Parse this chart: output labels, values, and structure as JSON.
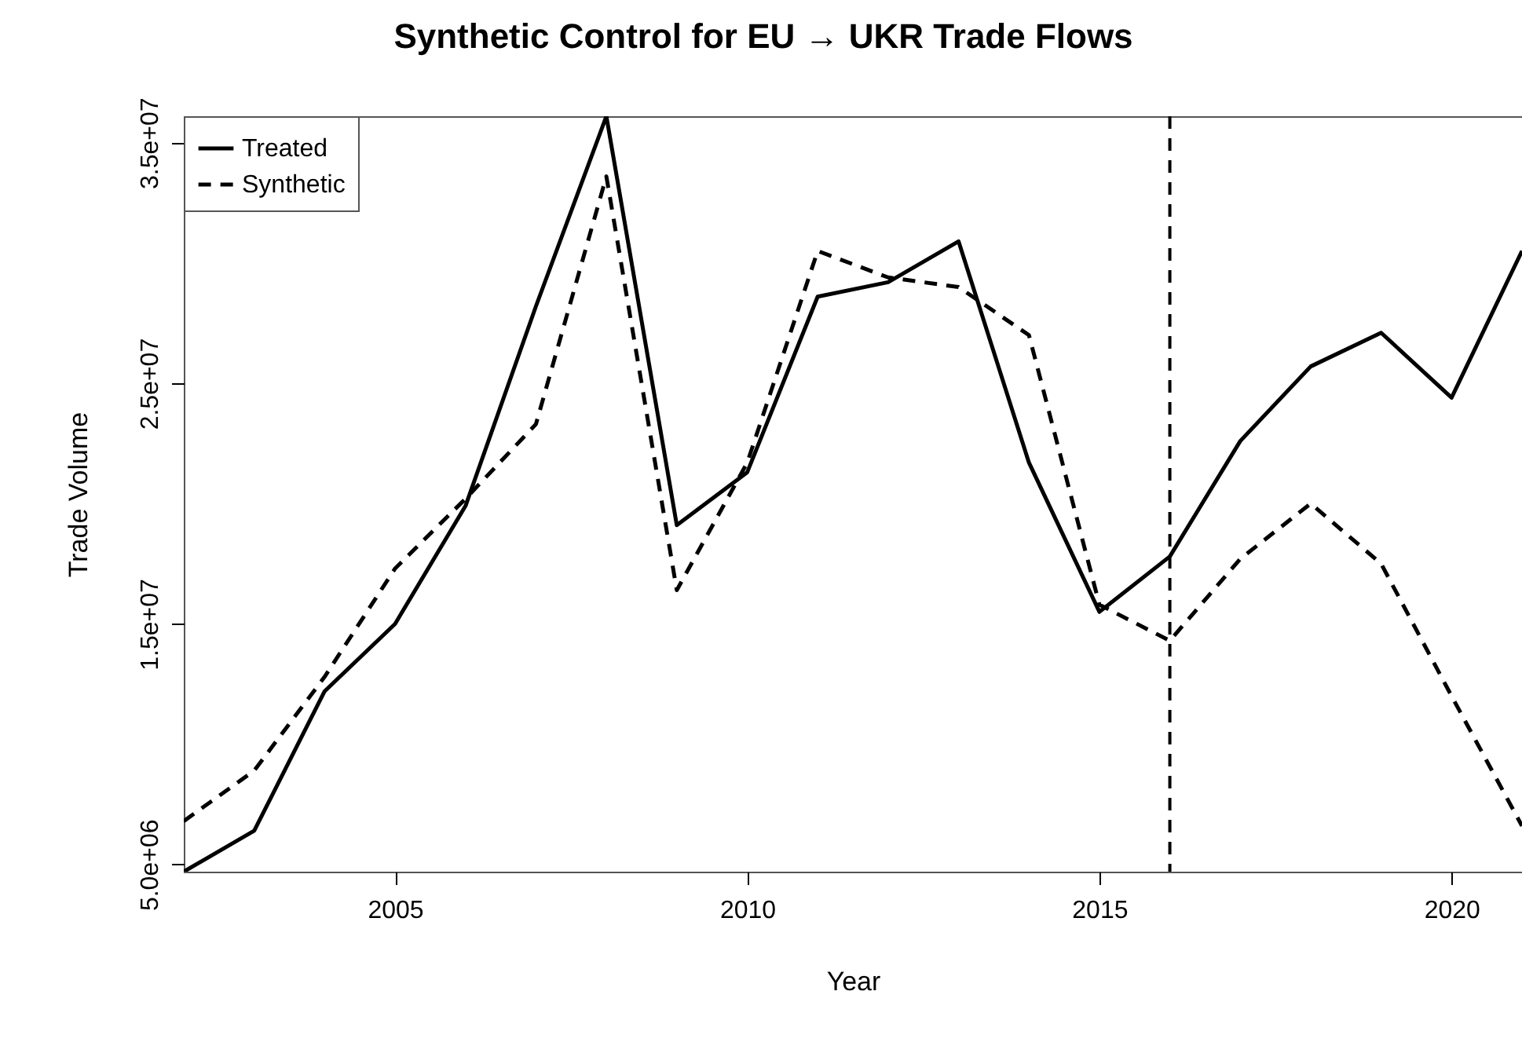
{
  "chart_data": {
    "type": "line",
    "title": "Synthetic Control for EU → UKR Trade Flows",
    "xlabel": "Year",
    "ylabel": "Trade Volume",
    "x": [
      2002,
      2003,
      2004,
      2005,
      2006,
      2007,
      2008,
      2009,
      2010,
      2011,
      2012,
      2013,
      2014,
      2015,
      2016,
      2017,
      2018,
      2019,
      2020,
      2021
    ],
    "series": [
      {
        "name": "Treated",
        "color": "#000000",
        "line_style": "solid",
        "values": [
          4700000,
          6400000,
          12200000,
          15000000,
          19900000,
          28200000,
          36100000,
          19100000,
          21300000,
          28600000,
          29200000,
          30900000,
          21700000,
          15500000,
          17800000,
          22600000,
          25700000,
          27100000,
          24400000,
          30500000
        ]
      },
      {
        "name": "Synthetic",
        "color": "#000000",
        "line_style": "dashed",
        "values": [
          6800000,
          8900000,
          12800000,
          17300000,
          20200000,
          23300000,
          33600000,
          16400000,
          21700000,
          30500000,
          29400000,
          29000000,
          27000000,
          15800000,
          14300000,
          17700000,
          20000000,
          17500000,
          12000000,
          6600000
        ]
      }
    ],
    "xlim": [
      2002,
      2021
    ],
    "ylim": [
      4700000,
      36100000
    ],
    "xticks": [
      2005,
      2010,
      2015,
      2020
    ],
    "yticks": [
      {
        "value": 5000000,
        "label": "5.0e+06"
      },
      {
        "value": 15000000,
        "label": "1.5e+07"
      },
      {
        "value": 25000000,
        "label": "2.5e+07"
      },
      {
        "value": 35000000,
        "label": "3.5e+07"
      }
    ],
    "ref_lines": [
      {
        "axis": "x",
        "value": 2016,
        "color": "#000000",
        "line_style": "dashed"
      }
    ],
    "legend": "top left",
    "grid": false
  }
}
